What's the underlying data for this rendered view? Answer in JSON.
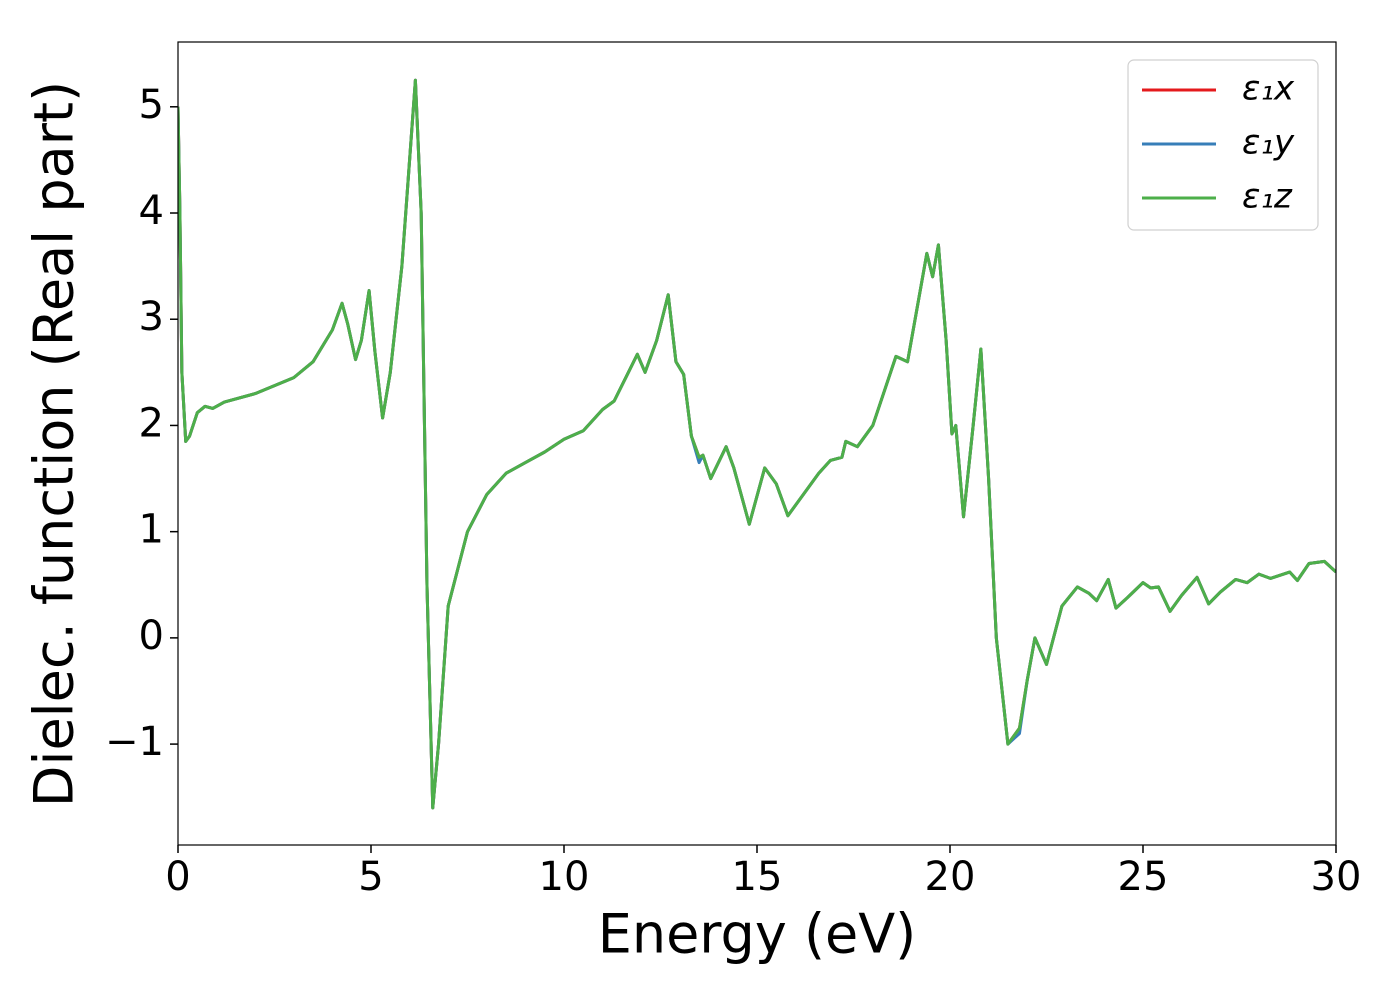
{
  "chart_data": {
    "type": "line",
    "xlabel": "Energy (eV)",
    "ylabel": "Dielec. function (Real part)",
    "x": [
      0,
      0.05,
      0.1,
      0.2,
      0.3,
      0.5,
      0.7,
      0.9,
      1.2,
      2,
      3,
      3.5,
      4.0,
      4.25,
      4.4,
      4.6,
      4.75,
      4.95,
      5.1,
      5.3,
      5.5,
      5.8,
      6.0,
      6.15,
      6.3,
      6.45,
      6.6,
      6.75,
      7.0,
      7.5,
      8,
      8.5,
      9,
      9.5,
      10,
      10.5,
      11,
      11.3,
      11.6,
      11.9,
      12.1,
      12.4,
      12.7,
      12.9,
      13.1,
      13.3,
      13.5,
      13.6,
      13.8,
      14.2,
      14.4,
      14.8,
      15.2,
      15.5,
      15.8,
      16.2,
      16.6,
      16.9,
      17.2,
      17.3,
      17.6,
      18,
      18.6,
      18.9,
      19.4,
      19.55,
      19.7,
      19.9,
      20.05,
      20.15,
      20.35,
      20.6,
      20.8,
      21.0,
      21.2,
      21.5,
      21.8,
      22.0,
      22.2,
      22.5,
      22.9,
      23.3,
      23.6,
      23.8,
      24.1,
      24.3,
      24.6,
      25,
      25.2,
      25.4,
      25.7,
      26,
      26.4,
      26.7,
      27,
      27.4,
      27.7,
      28,
      28.3,
      28.8,
      29.0,
      29.3,
      29.7,
      30
    ],
    "series": [
      {
        "name": "ε₁x",
        "color": "#e41a1c",
        "values": [
          5.0,
          4.0,
          2.5,
          1.85,
          1.9,
          2.12,
          2.18,
          2.16,
          2.22,
          2.3,
          2.45,
          2.6,
          2.9,
          3.15,
          2.95,
          2.62,
          2.8,
          3.27,
          2.7,
          2.07,
          2.5,
          3.5,
          4.5,
          5.25,
          4.0,
          0.5,
          -1.6,
          -1.0,
          0.3,
          1.0,
          1.35,
          1.55,
          1.65,
          1.75,
          1.87,
          1.95,
          2.15,
          2.23,
          2.45,
          2.67,
          2.5,
          2.8,
          3.23,
          2.6,
          2.48,
          1.9,
          1.7,
          1.72,
          1.5,
          1.8,
          1.6,
          1.07,
          1.6,
          1.45,
          1.15,
          1.35,
          1.55,
          1.67,
          1.7,
          1.85,
          1.8,
          2.0,
          2.65,
          2.6,
          3.62,
          3.4,
          3.7,
          2.8,
          1.92,
          2.0,
          1.14,
          2.0,
          2.72,
          1.5,
          0.0,
          -1.0,
          -0.85,
          -0.4,
          0.0,
          -0.25,
          0.3,
          0.48,
          0.42,
          0.35,
          0.55,
          0.28,
          0.38,
          0.52,
          0.47,
          0.48,
          0.25,
          0.4,
          0.57,
          0.32,
          0.43,
          0.55,
          0.52,
          0.6,
          0.56,
          0.62,
          0.54,
          0.7,
          0.72,
          0.62
        ]
      },
      {
        "name": "ε₁y",
        "color": "#377eb8",
        "values": [
          5.0,
          4.0,
          2.5,
          1.85,
          1.9,
          2.12,
          2.18,
          2.16,
          2.22,
          2.3,
          2.45,
          2.6,
          2.9,
          3.15,
          2.95,
          2.62,
          2.8,
          3.27,
          2.7,
          2.07,
          2.5,
          3.5,
          4.5,
          5.25,
          4.0,
          0.5,
          -1.6,
          -1.0,
          0.3,
          1.0,
          1.35,
          1.55,
          1.65,
          1.75,
          1.87,
          1.95,
          2.15,
          2.23,
          2.45,
          2.67,
          2.5,
          2.8,
          3.23,
          2.6,
          2.48,
          1.9,
          1.65,
          1.72,
          1.5,
          1.8,
          1.6,
          1.07,
          1.6,
          1.45,
          1.15,
          1.35,
          1.55,
          1.67,
          1.7,
          1.85,
          1.8,
          2.0,
          2.65,
          2.6,
          3.62,
          3.4,
          3.7,
          2.8,
          1.92,
          2.0,
          1.14,
          2.0,
          2.72,
          1.5,
          0.0,
          -1.0,
          -0.9,
          -0.4,
          0.0,
          -0.25,
          0.3,
          0.48,
          0.42,
          0.35,
          0.55,
          0.28,
          0.38,
          0.52,
          0.47,
          0.48,
          0.25,
          0.4,
          0.57,
          0.32,
          0.43,
          0.55,
          0.52,
          0.6,
          0.56,
          0.62,
          0.54,
          0.7,
          0.72,
          0.62
        ]
      },
      {
        "name": "ε₁z",
        "color": "#4daf4a",
        "values": [
          5.0,
          4.0,
          2.5,
          1.85,
          1.9,
          2.12,
          2.18,
          2.16,
          2.22,
          2.3,
          2.45,
          2.6,
          2.9,
          3.15,
          2.95,
          2.62,
          2.8,
          3.27,
          2.7,
          2.07,
          2.5,
          3.5,
          4.5,
          5.25,
          4.0,
          0.5,
          -1.6,
          -1.0,
          0.3,
          1.0,
          1.35,
          1.55,
          1.65,
          1.75,
          1.87,
          1.95,
          2.15,
          2.23,
          2.45,
          2.67,
          2.5,
          2.8,
          3.23,
          2.6,
          2.48,
          1.9,
          1.7,
          1.72,
          1.5,
          1.8,
          1.6,
          1.07,
          1.6,
          1.45,
          1.15,
          1.35,
          1.55,
          1.67,
          1.7,
          1.85,
          1.8,
          2.0,
          2.65,
          2.6,
          3.62,
          3.4,
          3.7,
          2.8,
          1.92,
          2.0,
          1.14,
          2.0,
          2.72,
          1.5,
          0.0,
          -1.0,
          -0.85,
          -0.4,
          0.0,
          -0.25,
          0.3,
          0.48,
          0.42,
          0.35,
          0.55,
          0.28,
          0.38,
          0.52,
          0.47,
          0.48,
          0.25,
          0.4,
          0.57,
          0.32,
          0.43,
          0.55,
          0.52,
          0.6,
          0.56,
          0.62,
          0.54,
          0.7,
          0.72,
          0.62
        ]
      }
    ],
    "xlim": [
      0,
      30
    ],
    "xticks": [
      0,
      5,
      10,
      15,
      20,
      25,
      30
    ],
    "ylim": [
      -1.95,
      5.61
    ],
    "yticks": [
      {
        "value": -1,
        "label": "−1"
      },
      0,
      1,
      2,
      3,
      4,
      5
    ],
    "legend": "upper right",
    "grid": false
  }
}
